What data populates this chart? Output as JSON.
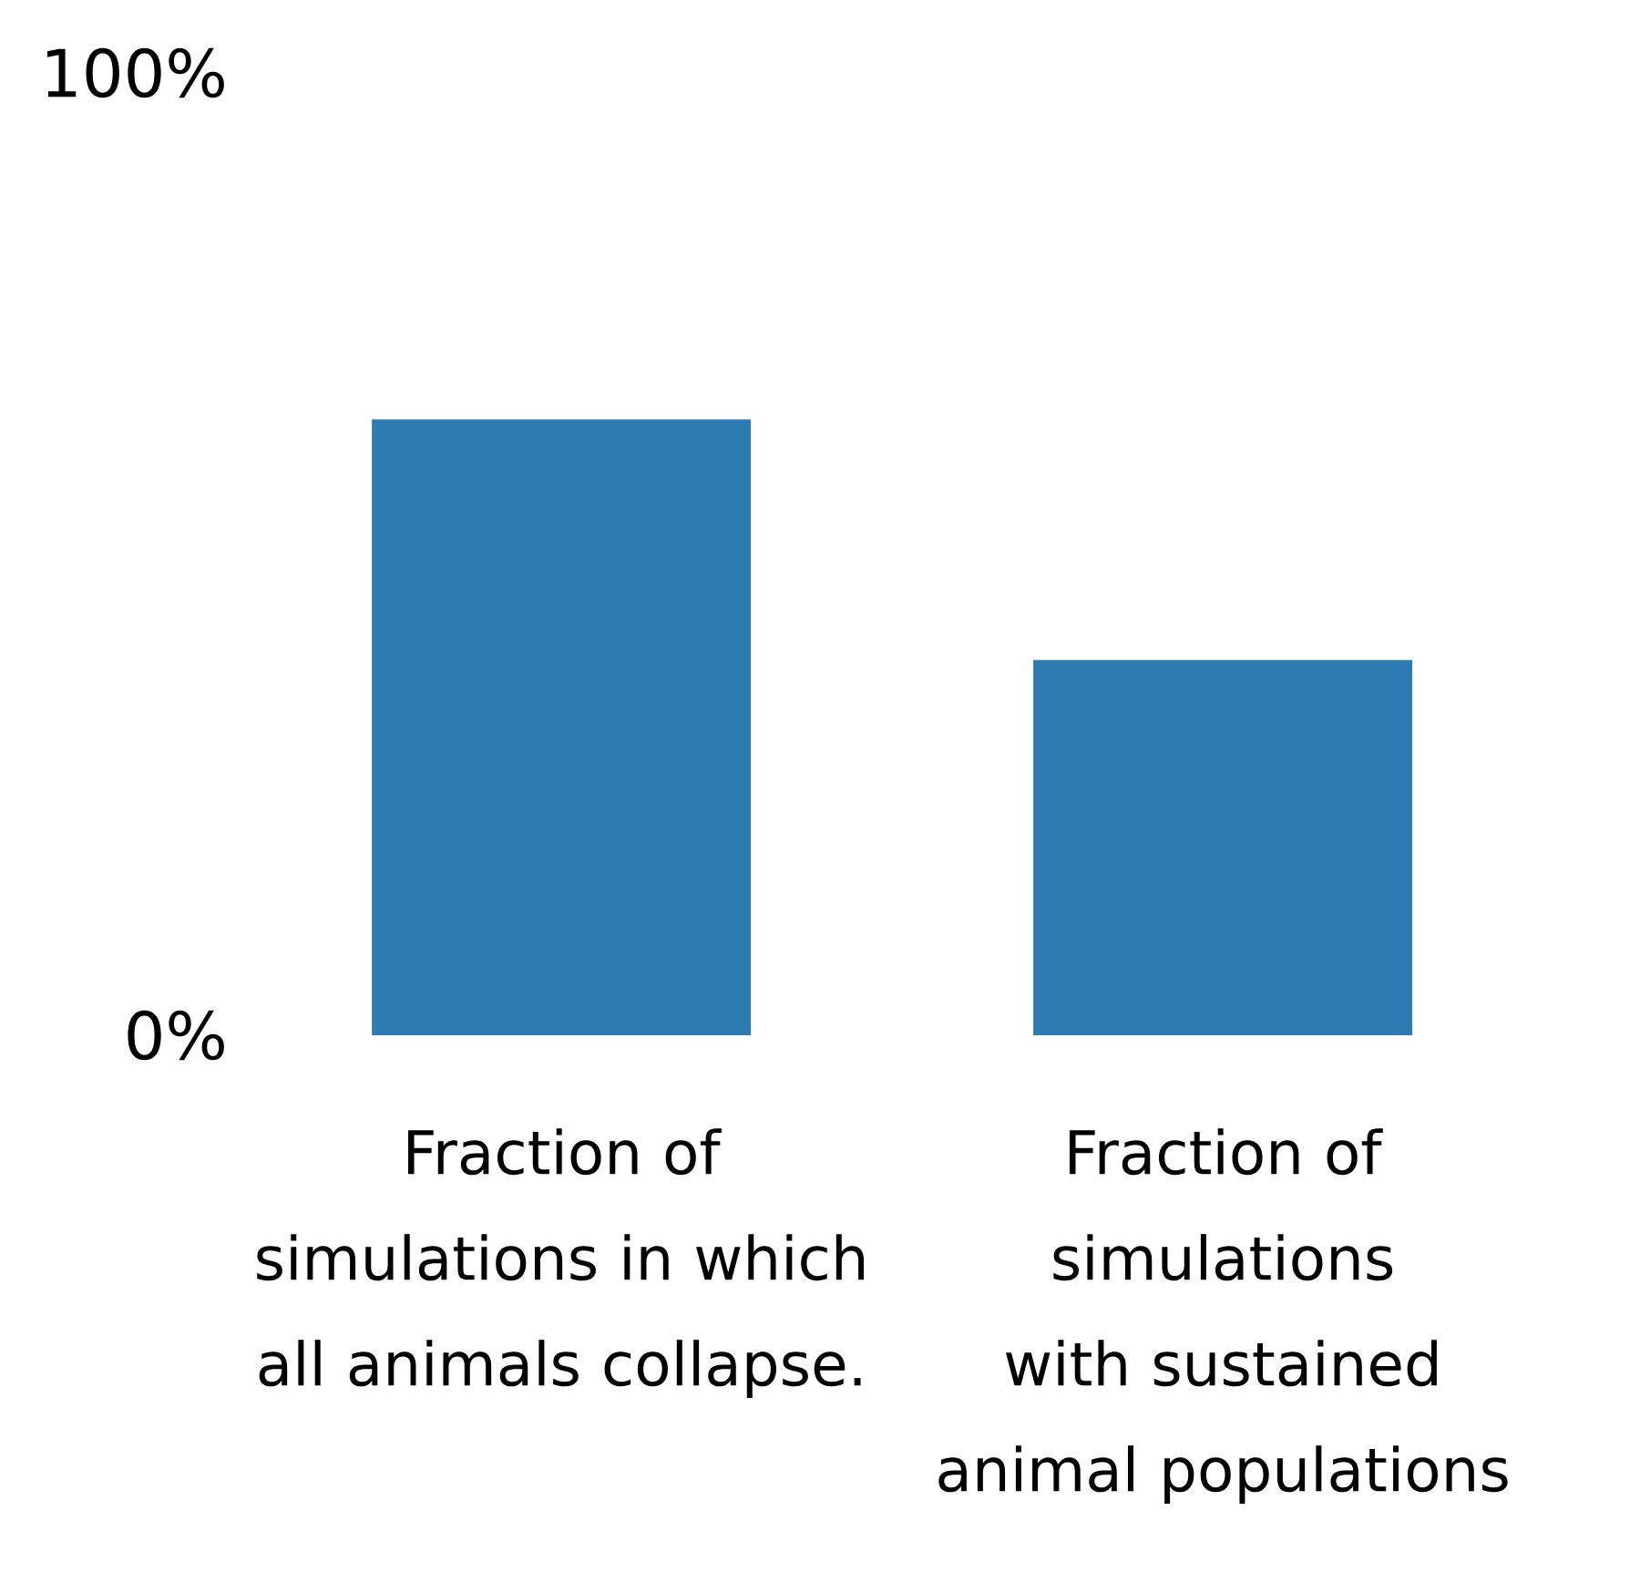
{
  "chart_data": {
    "type": "bar",
    "categories": [
      "Fraction of simulations in which all animals collapse.",
      "Fraction of simulations with sustained animal populations"
    ],
    "values": [
      64,
      39
    ],
    "color": "#2e7bb4",
    "ylim": [
      0,
      100
    ],
    "yticks": [
      {
        "value": 0,
        "label": "0%"
      },
      {
        "value": 100,
        "label": "100%"
      }
    ],
    "grid": false
  }
}
